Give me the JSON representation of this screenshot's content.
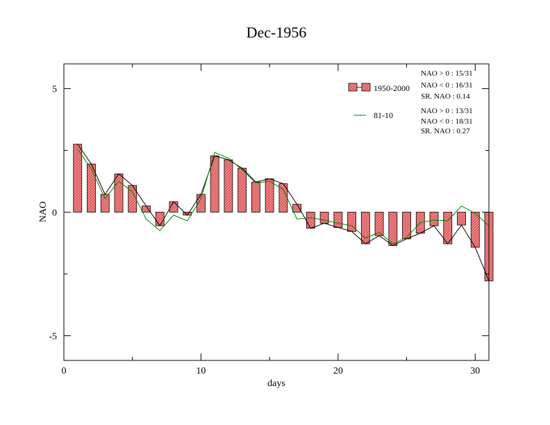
{
  "chart_data": {
    "type": "bar",
    "title": "Dec-1956",
    "xlabel": "days",
    "ylabel": "NAO",
    "xlim": [
      0,
      31
    ],
    "ylim": [
      -6,
      6
    ],
    "xticks": [
      "0",
      "10",
      "20",
      "30"
    ],
    "yticks": [
      "5",
      "0",
      "-5"
    ],
    "x": [
      1,
      2,
      3,
      4,
      5,
      6,
      7,
      8,
      9,
      10,
      11,
      12,
      13,
      14,
      15,
      16,
      17,
      18,
      19,
      20,
      21,
      22,
      23,
      24,
      25,
      26,
      27,
      28,
      29,
      30,
      31
    ],
    "series": [
      {
        "name": "1950-2000",
        "type": "bar",
        "color": "#ff8080",
        "values": [
          2.75,
          1.95,
          0.72,
          1.55,
          1.08,
          0.25,
          -0.55,
          0.42,
          -0.12,
          0.72,
          2.28,
          2.12,
          1.78,
          1.22,
          1.35,
          1.15,
          0.32,
          -0.65,
          -0.45,
          -0.62,
          -0.78,
          -1.28,
          -0.95,
          -1.35,
          -1.08,
          -0.85,
          -0.55,
          -1.28,
          -0.52,
          -1.42,
          -2.78
        ]
      },
      {
        "name": "81-10",
        "type": "line",
        "color": "#008000",
        "values": [
          2.55,
          1.75,
          0.55,
          1.25,
          0.82,
          -0.28,
          -0.75,
          -0.12,
          -0.35,
          0.55,
          2.42,
          2.18,
          1.72,
          1.18,
          1.25,
          0.92,
          -0.28,
          -0.22,
          -0.32,
          -0.45,
          -0.55,
          -1.05,
          -0.82,
          -1.28,
          -1.02,
          -0.42,
          -0.32,
          -0.35,
          0.25,
          -0.05,
          -0.55
        ]
      }
    ],
    "legend": {
      "placement": "top-right",
      "stats_1950_2000": [
        "NAO > 0 :  15/31",
        "NAO < 0 :  16/31",
        "SR. NAO :  0.14"
      ],
      "stats_81_10": [
        "NAO > 0 :  13/31",
        "NAO < 0 :  18/31",
        "SR. NAO :  0.27"
      ]
    },
    "grid": false
  }
}
